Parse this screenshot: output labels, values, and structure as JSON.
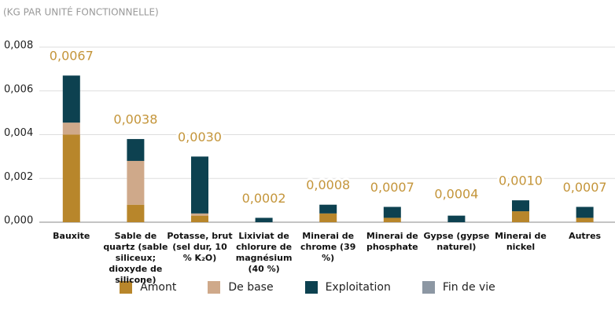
{
  "chart_data": {
    "type": "stacked_bar",
    "subtitle": "(KG PAR UNITÉ FONCTIONNELLE)",
    "categories": [
      "Bauxite",
      "Sable de quartz (sable siliceux; dioxyde de silicone)",
      "Potasse, brut (sel dur, 10 % K₂O)",
      "Lixiviat de chlorure de magnésium (40 %)",
      "Minerai de chrome (39 %)",
      "Minerai de phosphate",
      "Gypse (gypse naturel)",
      "Minerai de nickel",
      "Autres"
    ],
    "series": [
      {
        "name": "Amont",
        "color": "#b8862b",
        "values": [
          0.004,
          0.0008,
          0.0003,
          0,
          0.0004,
          0.0002,
          0,
          0.0005,
          0.0002
        ]
      },
      {
        "name": "De base",
        "color": "#cfa98a",
        "values": [
          0.00055,
          0.002,
          0.0001,
          0,
          0,
          0,
          0,
          0,
          0
        ]
      },
      {
        "name": "Exploitation",
        "color": "#0d4150",
        "values": [
          0.00215,
          0.001,
          0.0026,
          0.0002,
          0.0004,
          0.0005,
          0.0003,
          0.0005,
          0.0005
        ]
      },
      {
        "name": "Fin de vie",
        "color": "#8c97a3",
        "values": [
          0,
          0,
          0,
          0,
          0,
          0,
          0,
          0,
          0
        ]
      }
    ],
    "totals": [
      0.0067,
      0.0038,
      0.003,
      0.0002,
      0.0008,
      0.0007,
      0.0004,
      0.001,
      0.0007
    ],
    "total_labels": [
      "0,0067",
      "0,0038",
      "0,0030",
      "0,0002",
      "0,0008",
      "0,0007",
      "0,0004",
      "0,0010",
      "0,0007"
    ],
    "total_label_color": "#c4953a",
    "ylim": [
      0,
      0.008
    ],
    "yticks": [
      {
        "value": 0,
        "label": "0,000"
      },
      {
        "value": 0.002,
        "label": "0,002"
      },
      {
        "value": 0.004,
        "label": "0,004"
      },
      {
        "value": 0.006,
        "label": "0,006"
      },
      {
        "value": 0.008,
        "label": "0,008"
      }
    ],
    "grid": true
  }
}
